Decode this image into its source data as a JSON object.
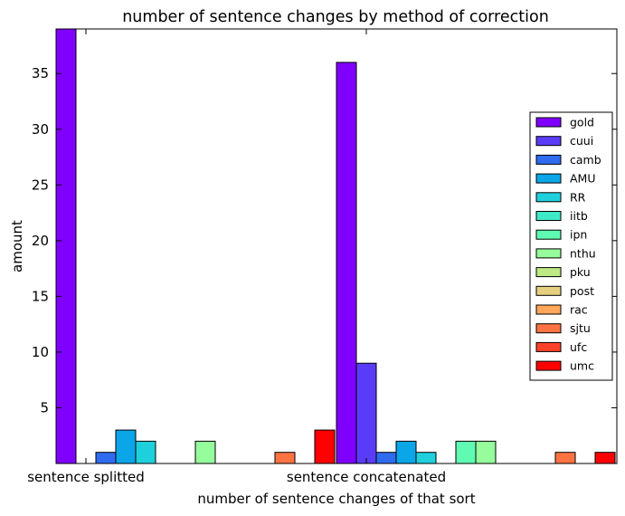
{
  "chart_data": {
    "type": "bar",
    "title": "number of sentence changes by method of correction",
    "xlabel": "number of sentence changes of that sort",
    "ylabel": "amount",
    "categories": [
      "sentence splitted",
      "sentence concatenated"
    ],
    "ylim": [
      0,
      39
    ],
    "yticks": [
      5,
      10,
      15,
      20,
      25,
      30,
      35
    ],
    "grid": false,
    "legend_position": "right",
    "series": [
      {
        "name": "gold",
        "color": "#8000ff",
        "values": [
          39,
          36
        ]
      },
      {
        "name": "cuui",
        "color": "#5a3cf8",
        "values": [
          0,
          9
        ]
      },
      {
        "name": "camb",
        "color": "#2f6bef",
        "values": [
          1,
          1
        ]
      },
      {
        "name": "AMU",
        "color": "#0aa6e8",
        "values": [
          3,
          2
        ]
      },
      {
        "name": "RR",
        "color": "#1ed0dc",
        "values": [
          2,
          1
        ]
      },
      {
        "name": "iitb",
        "color": "#3ee9c8",
        "values": [
          0,
          0
        ]
      },
      {
        "name": "ipn",
        "color": "#60fbb2",
        "values": [
          0,
          2
        ]
      },
      {
        "name": "nthu",
        "color": "#96fc9c",
        "values": [
          2,
          2
        ]
      },
      {
        "name": "pku",
        "color": "#bdea85",
        "values": [
          0,
          0
        ]
      },
      {
        "name": "post",
        "color": "#e4d07f",
        "values": [
          0,
          0
        ]
      },
      {
        "name": "rac",
        "color": "#ffa75a",
        "values": [
          0,
          0
        ]
      },
      {
        "name": "sjtu",
        "color": "#ff7343",
        "values": [
          1,
          1
        ]
      },
      {
        "name": "ufc",
        "color": "#ff4229",
        "values": [
          0,
          0
        ]
      },
      {
        "name": "umc",
        "color": "#ff0000",
        "values": [
          3,
          1
        ]
      }
    ]
  }
}
